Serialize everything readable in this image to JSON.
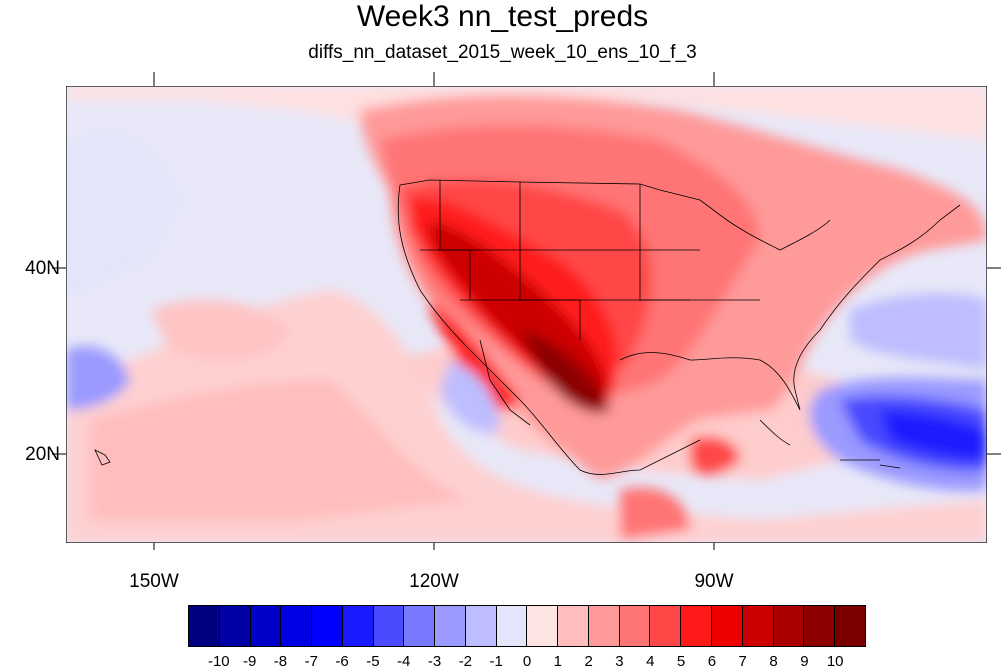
{
  "title": "Week3 nn_test_preds",
  "subtitle": "diffs_nn_dataset_2015_week_10_ens_10_f_3",
  "map": {
    "lon_range": [
      -159.5,
      -60.5
    ],
    "lat_range": [
      10.5,
      59.5
    ],
    "lat_labels": [
      {
        "lat": 40,
        "text": "40N"
      },
      {
        "lat": 20,
        "text": "20N"
      }
    ],
    "lon_labels": [
      {
        "lon": -150,
        "text": "150W"
      },
      {
        "lon": -120,
        "text": "120W"
      },
      {
        "lon": -90,
        "text": "90W"
      }
    ]
  },
  "colorbar": {
    "colors": [
      "#000080",
      "#0000a6",
      "#0000c8",
      "#0000e4",
      "#0000ff",
      "#1a1aff",
      "#4a4aff",
      "#7878ff",
      "#9a9aff",
      "#bdbdff",
      "#e4e4fa",
      "#ffe4e4",
      "#ffbdbd",
      "#ff9a9a",
      "#ff7575",
      "#ff4747",
      "#ff1a1a",
      "#ee0000",
      "#cc0000",
      "#aa0000",
      "#8c0000",
      "#7a0000"
    ],
    "labels": [
      "-10",
      "-9",
      "-8",
      "-7",
      "-6",
      "-5",
      "-4",
      "-3",
      "-2",
      "-1",
      "0",
      "1",
      "2",
      "3",
      "4",
      "5",
      "6",
      "7",
      "8",
      "9",
      "10"
    ]
  }
}
